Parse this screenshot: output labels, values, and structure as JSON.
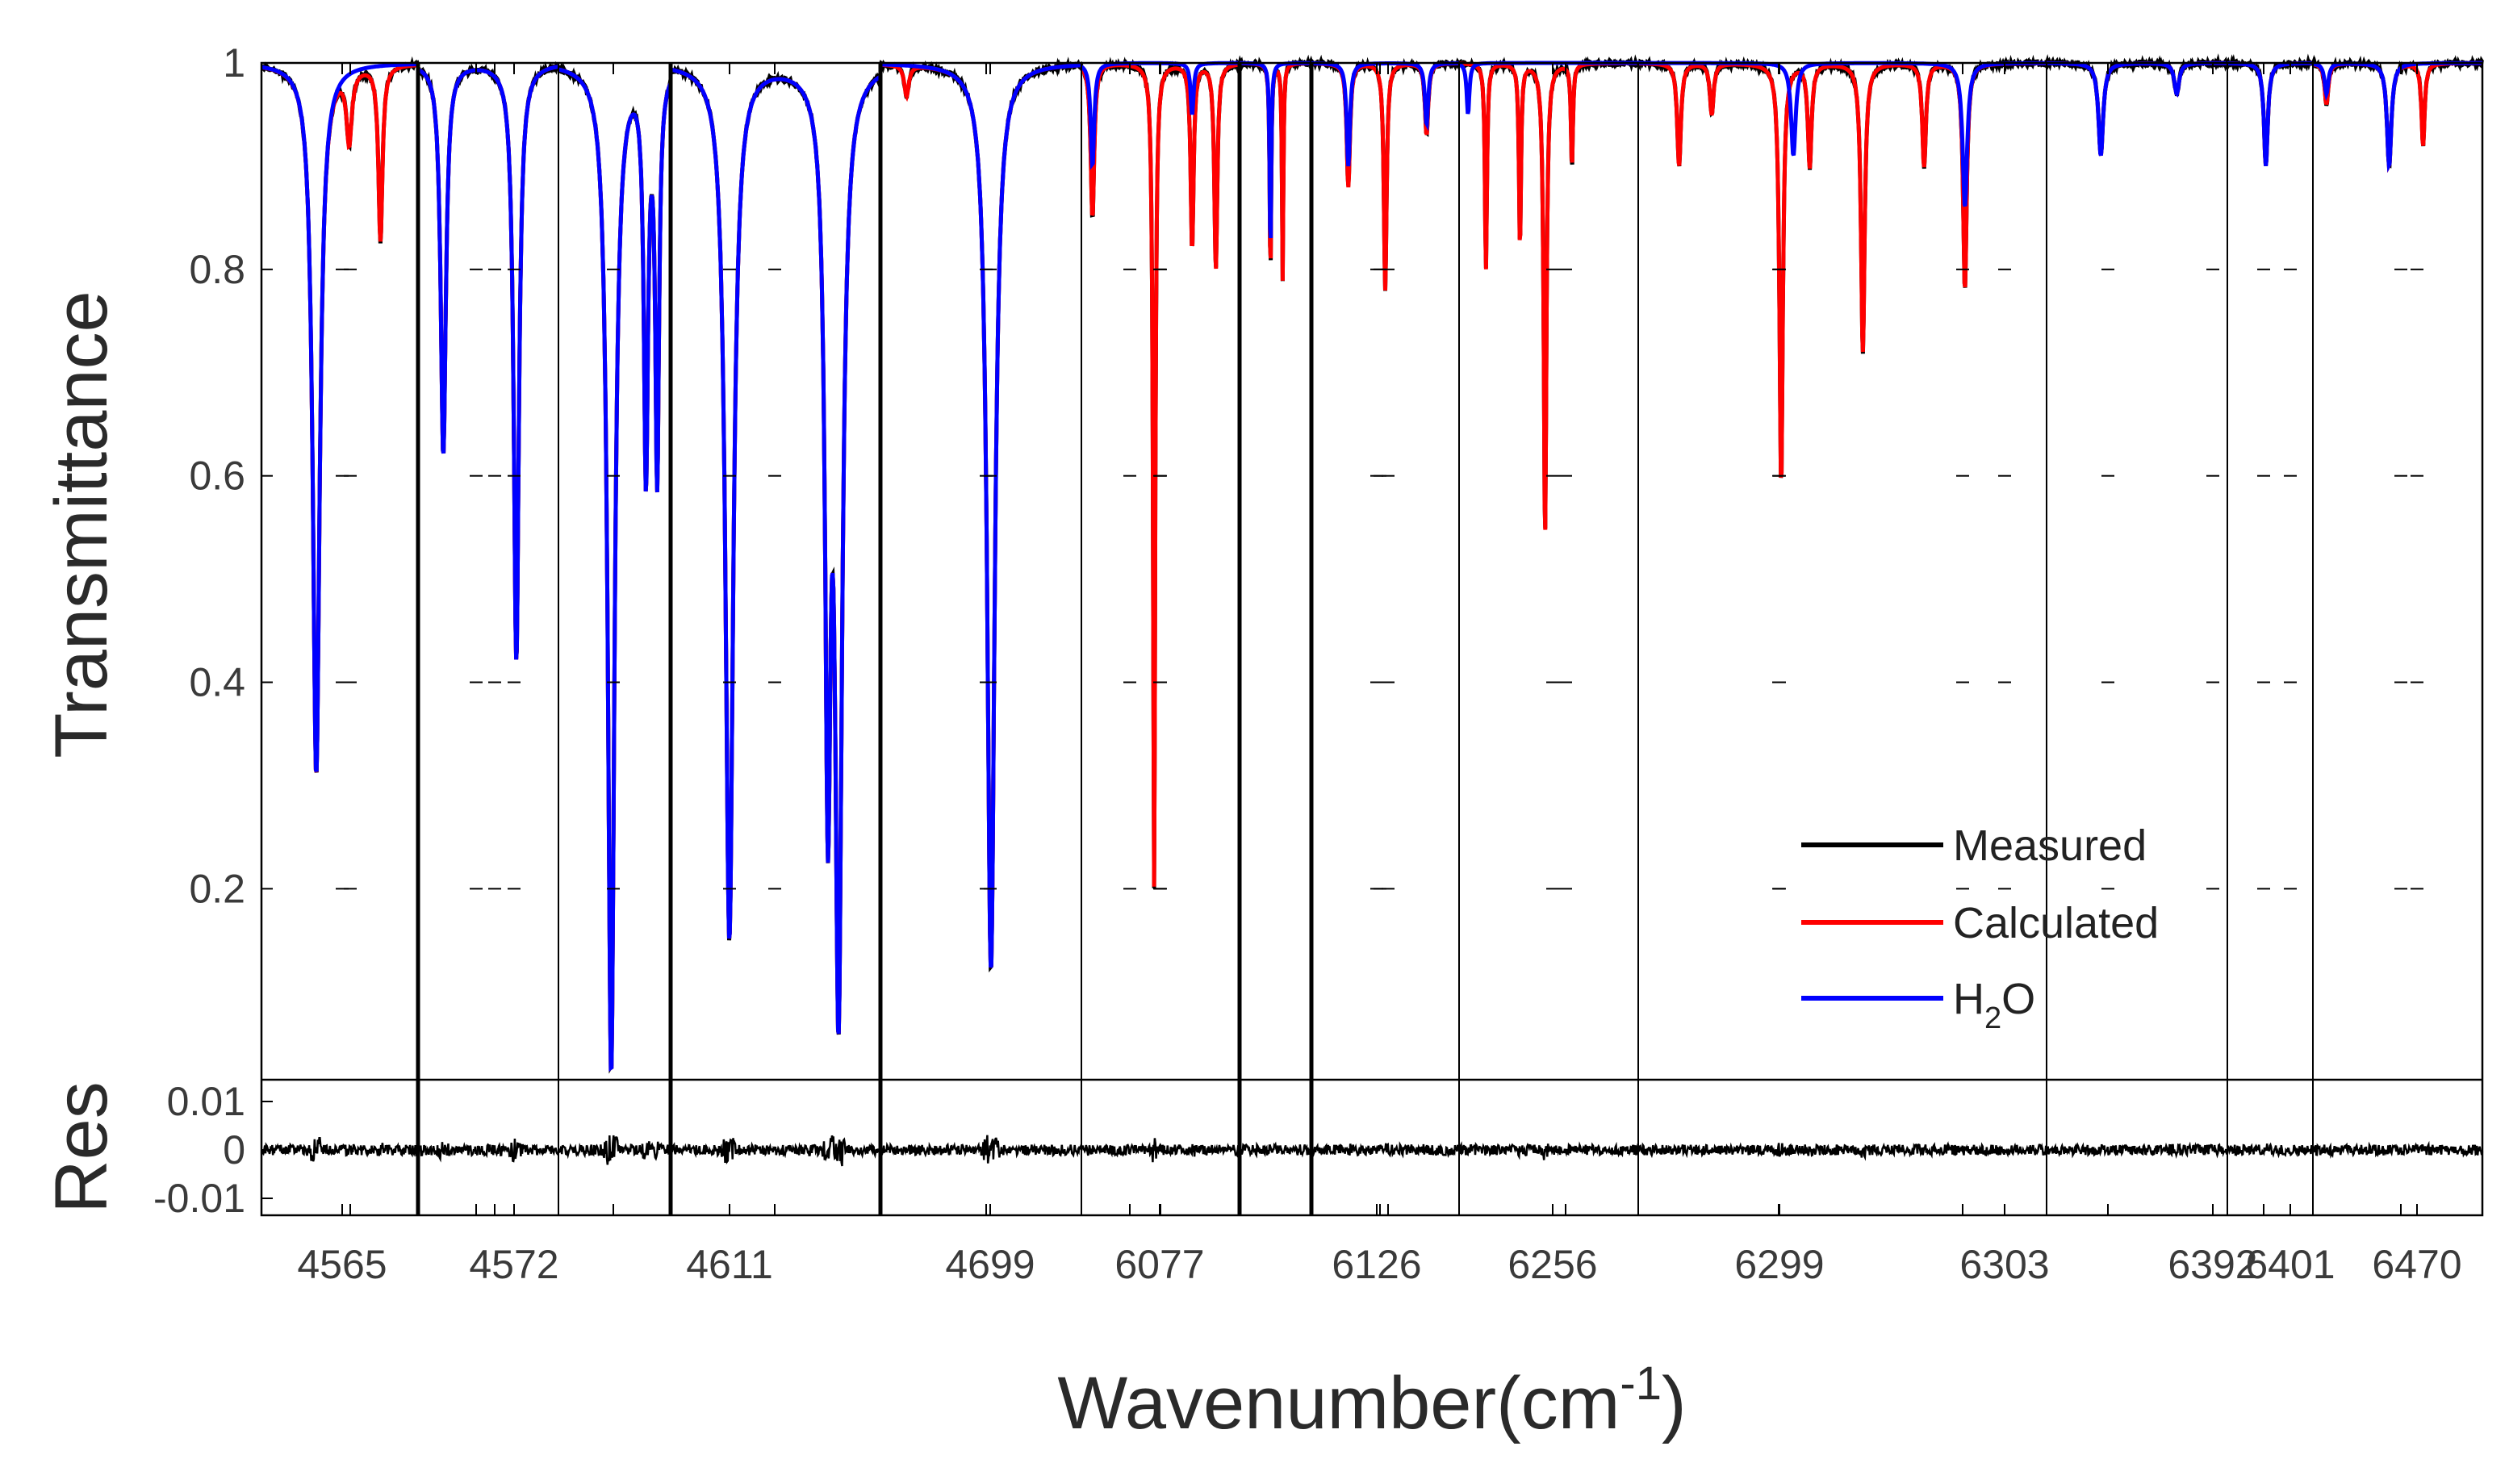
{
  "chart_data": {
    "type": "line",
    "ylabel": "Transmittance",
    "xlabel_main": "Wavenumber(cm",
    "xlabel_sup": "-1",
    "xlabel_close": ")",
    "residual_label": "Res",
    "main_ylim": [
      0.015,
      1.0
    ],
    "main_yticks": [
      0.2,
      0.4,
      0.6,
      0.8,
      1
    ],
    "main_ytick_labels": [
      "0.2",
      "0.4",
      "0.6",
      "0.8",
      "1"
    ],
    "res_ylim": [
      -0.0135,
      0.0145
    ],
    "res_yticks": [
      -0.01,
      0,
      0.01
    ],
    "res_ytick_labels": [
      "-0.01",
      "0",
      "0.01"
    ],
    "legend": {
      "position": "right",
      "entries": [
        {
          "label": "Measured",
          "color": "#000000"
        },
        {
          "label": "Calculated",
          "color": "#ff0000"
        },
        {
          "label_main": "H",
          "label_sub": "2",
          "label_end": "O",
          "color": "#0000ff"
        }
      ]
    },
    "colors": {
      "measured": "#000000",
      "calculated": "#ff0000",
      "h2o": "#0000ff",
      "axis": "#000000"
    },
    "x_tick_labels": [
      "4565",
      "4572",
      "4611",
      "4699",
      "6077",
      "6126",
      "6256",
      "6299",
      "6303",
      "6392",
      "6401",
      "6470"
    ],
    "panels": [
      {
        "calc_lines": [
          {
            "c": 0.35,
            "d": 0.69,
            "w": 0.06
          },
          {
            "c": 0.56,
            "d": 0.07,
            "w": 0.045
          },
          {
            "c": 0.76,
            "d": 0.17,
            "w": 0.035
          }
        ],
        "h2o_lines": [
          {
            "c": 0.35,
            "d": 0.69,
            "w": 0.06
          }
        ]
      },
      {
        "calc_lines": [
          {
            "c": 0.18,
            "d": 0.38,
            "w": 0.05
          },
          {
            "c": 0.7,
            "d": 0.58,
            "w": 0.05
          }
        ],
        "h2o_lines": [
          {
            "c": 0.18,
            "d": 0.38,
            "w": 0.05
          },
          {
            "c": 0.7,
            "d": 0.58,
            "w": 0.05
          }
        ]
      },
      {
        "calc_lines": [
          {
            "c": 0.47,
            "d": 0.98,
            "w": 0.08
          },
          {
            "c": 0.78,
            "d": 0.4,
            "w": 0.05
          },
          {
            "c": 0.88,
            "d": 0.4,
            "w": 0.045
          }
        ],
        "h2o_lines": [
          {
            "c": 0.47,
            "d": 0.98,
            "w": 0.08
          },
          {
            "c": 0.78,
            "d": 0.4,
            "w": 0.05
          },
          {
            "c": 0.88,
            "d": 0.4,
            "w": 0.045
          }
        ]
      },
      {
        "calc_lines": [
          {
            "c": 0.28,
            "d": 0.85,
            "w": 0.05
          },
          {
            "c": 0.75,
            "d": 0.74,
            "w": 0.035
          },
          {
            "c": 0.8,
            "d": 0.94,
            "w": 0.045
          }
        ],
        "h2o_lines": [
          {
            "c": 0.28,
            "d": 0.85,
            "w": 0.05
          },
          {
            "c": 0.75,
            "d": 0.74,
            "w": 0.035
          },
          {
            "c": 0.8,
            "d": 0.94,
            "w": 0.045
          }
        ]
      },
      {
        "calc_lines": [
          {
            "c": 0.13,
            "d": 0.03,
            "w": 0.03
          },
          {
            "c": 0.55,
            "d": 0.88,
            "w": 0.05
          }
        ],
        "h2o_lines": [
          {
            "c": 0.55,
            "d": 0.88,
            "w": 0.05
          }
        ]
      },
      {
        "calc_lines": [
          {
            "c": 0.07,
            "d": 0.15,
            "w": 0.03
          },
          {
            "c": 0.46,
            "d": 0.8,
            "w": 0.018
          },
          {
            "c": 0.7,
            "d": 0.18,
            "w": 0.025
          },
          {
            "c": 0.85,
            "d": 0.2,
            "w": 0.025
          }
        ],
        "h2o_lines": [
          {
            "c": 0.07,
            "d": 0.1,
            "w": 0.03
          },
          {
            "c": 0.7,
            "d": 0.05,
            "w": 0.025
          }
        ]
      },
      {
        "calc_lines": [
          {
            "c": 0.43,
            "d": 0.2,
            "w": 0.03
          },
          {
            "c": 0.6,
            "d": 0.21,
            "w": 0.025
          }
        ],
        "h2o_lines": [
          {
            "c": 0.43,
            "d": 0.18,
            "w": 0.03
          }
        ]
      },
      {
        "calc_lines": [
          {
            "c": 0.25,
            "d": 0.12,
            "w": 0.03
          },
          {
            "c": 0.5,
            "d": 0.22,
            "w": 0.025
          },
          {
            "c": 0.78,
            "d": 0.07,
            "w": 0.03
          }
        ],
        "h2o_lines": [
          {
            "c": 0.25,
            "d": 0.1,
            "w": 0.03
          },
          {
            "c": 0.78,
            "d": 0.06,
            "w": 0.03
          }
        ]
      },
      {
        "calc_lines": [
          {
            "c": 0.15,
            "d": 0.2,
            "w": 0.015
          },
          {
            "c": 0.34,
            "d": 0.18,
            "w": 0.015
          },
          {
            "c": 0.48,
            "d": 0.46,
            "w": 0.02
          },
          {
            "c": 0.63,
            "d": 0.1,
            "w": 0.015
          }
        ],
        "h2o_lines": [
          {
            "c": 0.05,
            "d": 0.05,
            "w": 0.02
          }
        ]
      },
      {
        "calc_lines": [
          {
            "c": 0.1,
            "d": 0.1,
            "w": 0.012
          },
          {
            "c": 0.18,
            "d": 0.05,
            "w": 0.012
          },
          {
            "c": 0.35,
            "d": 0.41,
            "w": 0.011
          },
          {
            "c": 0.42,
            "d": 0.1,
            "w": 0.012
          },
          {
            "c": 0.55,
            "d": 0.28,
            "w": 0.012
          },
          {
            "c": 0.7,
            "d": 0.1,
            "w": 0.012
          },
          {
            "c": 0.8,
            "d": 0.22,
            "w": 0.012
          }
        ],
        "h2o_lines": [
          {
            "c": 0.38,
            "d": 0.09,
            "w": 0.015
          },
          {
            "c": 0.8,
            "d": 0.14,
            "w": 0.015
          }
        ]
      },
      {
        "calc_lines": [
          {
            "c": 0.3,
            "d": 0.09,
            "w": 0.035
          },
          {
            "c": 0.72,
            "d": 0.03,
            "w": 0.035
          }
        ],
        "h2o_lines": [
          {
            "c": 0.3,
            "d": 0.09,
            "w": 0.035
          },
          {
            "c": 0.72,
            "d": 0.03,
            "w": 0.035
          }
        ]
      },
      {
        "calc_lines": [
          {
            "c": 0.45,
            "d": 0.1,
            "w": 0.06
          }
        ],
        "h2o_lines": [
          {
            "c": 0.45,
            "d": 0.1,
            "w": 0.06
          }
        ]
      },
      {
        "calc_lines": [
          {
            "c": 0.08,
            "d": 0.04,
            "w": 0.03
          },
          {
            "c": 0.45,
            "d": 0.1,
            "w": 0.035
          },
          {
            "c": 0.65,
            "d": 0.08,
            "w": 0.025
          }
        ],
        "h2o_lines": [
          {
            "c": 0.08,
            "d": 0.03,
            "w": 0.03
          },
          {
            "c": 0.45,
            "d": 0.1,
            "w": 0.035
          }
        ]
      }
    ]
  }
}
